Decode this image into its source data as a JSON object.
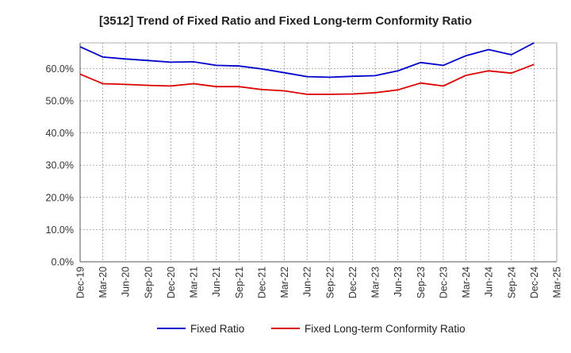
{
  "chart_data": {
    "type": "line",
    "title": "[3512]  Trend of Fixed Ratio and Fixed Long-term Conformity Ratio",
    "xlabel": "",
    "ylabel": "",
    "categories": [
      "Dec-19",
      "Mar-20",
      "Jun-20",
      "Sep-20",
      "Dec-20",
      "Mar-21",
      "Jun-21",
      "Sep-21",
      "Dec-21",
      "Mar-22",
      "Jun-22",
      "Sep-22",
      "Dec-22",
      "Mar-23",
      "Jun-23",
      "Sep-23",
      "Dec-23",
      "Mar-24",
      "Jun-24",
      "Sep-24",
      "Dec-24",
      "Mar-25"
    ],
    "y_ticks": [
      "0.0%",
      "10.0%",
      "20.0%",
      "30.0%",
      "40.0%",
      "50.0%",
      "60.0%"
    ],
    "y_tick_values": [
      0,
      10,
      20,
      30,
      40,
      50,
      60
    ],
    "ylim": [
      0,
      68
    ],
    "grid": true,
    "legend_position": "bottom",
    "series": [
      {
        "name": "Fixed Ratio",
        "color": "#0000cc",
        "values": [
          66.8,
          63.6,
          63.0,
          62.5,
          62.0,
          62.1,
          61.0,
          60.8,
          59.9,
          58.7,
          57.5,
          57.3,
          57.6,
          57.8,
          59.3,
          61.9,
          61.0,
          64.0,
          65.9,
          64.3,
          68.0,
          null
        ]
      },
      {
        "name": "Fixed Long-term Conformity Ratio",
        "color": "#dd0000",
        "values": [
          58.3,
          55.3,
          55.1,
          54.8,
          54.6,
          55.3,
          54.4,
          54.4,
          53.5,
          53.1,
          52.0,
          52.0,
          52.1,
          52.5,
          53.4,
          55.5,
          54.6,
          57.9,
          59.3,
          58.6,
          61.3,
          null
        ]
      }
    ]
  }
}
